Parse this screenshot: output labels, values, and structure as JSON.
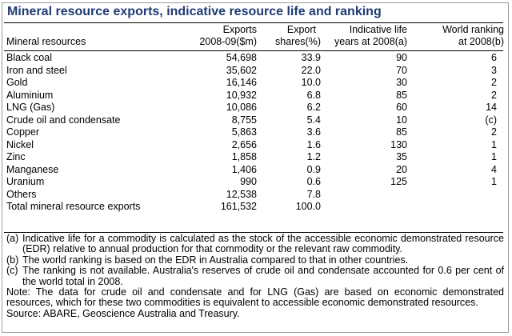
{
  "title": "Mineral resource exports, indicative resource life and ranking",
  "columns": {
    "name": [
      "Mineral resources"
    ],
    "exports": [
      "Exports",
      "2008-09($m)"
    ],
    "shares": [
      "Export",
      "shares(%)"
    ],
    "life": [
      "Indicative life",
      "years at 2008(a)"
    ],
    "rank": [
      "World ranking",
      "at 2008(b)"
    ]
  },
  "rows": [
    {
      "name": "Black coal",
      "exports": "54,698",
      "share": "33.9",
      "life": "90",
      "rank": "6"
    },
    {
      "name": "Iron and steel",
      "exports": "35,602",
      "share": "22.0",
      "life": "70",
      "rank": "3"
    },
    {
      "name": "Gold",
      "exports": "16,146",
      "share": "10.0",
      "life": "30",
      "rank": "2"
    },
    {
      "name": "Aluminium",
      "exports": "10,932",
      "share": "6.8",
      "life": "85",
      "rank": "2"
    },
    {
      "name": "LNG (Gas)",
      "exports": "10,086",
      "share": "6.2",
      "life": "60",
      "rank": "14"
    },
    {
      "name": "Crude oil and condensate",
      "exports": "8,755",
      "share": "5.4",
      "life": "10",
      "rank": "(c)"
    },
    {
      "name": "Copper",
      "exports": "5,863",
      "share": "3.6",
      "life": "85",
      "rank": "2"
    },
    {
      "name": "Nickel",
      "exports": "2,656",
      "share": "1.6",
      "life": "130",
      "rank": "1"
    },
    {
      "name": "Zinc",
      "exports": "1,858",
      "share": "1.2",
      "life": "35",
      "rank": "1"
    },
    {
      "name": "Manganese",
      "exports": "1,406",
      "share": "0.9",
      "life": "20",
      "rank": "4"
    },
    {
      "name": "Uranium",
      "exports": "990",
      "share": "0.6",
      "life": "125",
      "rank": "1"
    },
    {
      "name": "Others",
      "exports": "12,538",
      "share": "7.8",
      "life": "",
      "rank": ""
    },
    {
      "name": "Total mineral resource exports",
      "exports": "161,532",
      "share": "100.0",
      "life": "",
      "rank": ""
    }
  ],
  "footnotes": [
    {
      "label": "(a)",
      "text": "Indicative life for a commodity is calculated as the stock of the accessible economic demonstrated resource (EDR) relative to annual production for that commodity or the relevant raw commodity."
    },
    {
      "label": "(b)",
      "text": "The world ranking is based on the EDR in Australia compared to that in other countries."
    },
    {
      "label": "(c)",
      "text": "The ranking is not available. Australia's reserves of crude oil and condensate accounted for 0.6 per cent of the world total in 2008."
    }
  ],
  "note": "Note: The data for crude oil and condensate and for LNG (Gas) are based on economic demonstrated resources, which for these two commodities is equivalent to accessible economic demonstrated resources.",
  "source": "Source: ABARE, Geoscience Australia and Treasury."
}
